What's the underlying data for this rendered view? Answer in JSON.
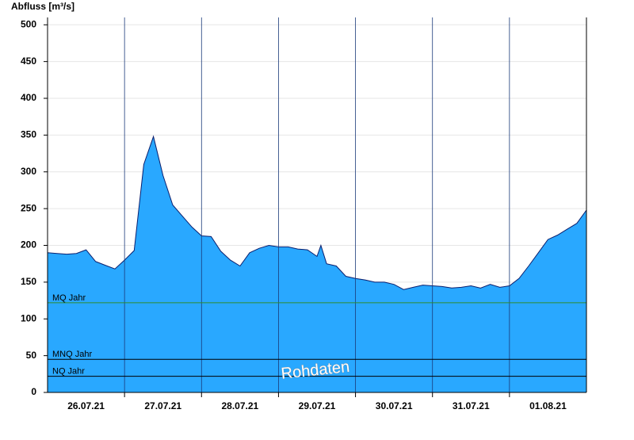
{
  "chart_data": {
    "type": "area",
    "y_label": "Abfluss [m³/s]",
    "x": [
      0,
      0.125,
      0.25,
      0.375,
      0.5,
      0.625,
      0.75,
      0.875,
      1.0,
      1.125,
      1.25,
      1.375,
      1.5,
      1.625,
      1.75,
      1.875,
      2.0,
      2.125,
      2.25,
      2.375,
      2.5,
      2.625,
      2.75,
      2.875,
      3.0,
      3.125,
      3.25,
      3.375,
      3.5,
      3.55,
      3.625,
      3.75,
      3.875,
      4.0,
      4.125,
      4.25,
      4.375,
      4.5,
      4.625,
      4.75,
      4.875,
      5.0,
      5.125,
      5.25,
      5.375,
      5.5,
      5.625,
      5.75,
      5.875,
      6.0,
      6.125,
      6.25,
      6.375,
      6.5,
      6.625,
      6.75,
      6.875,
      7.0
    ],
    "values": [
      190,
      189,
      188,
      189,
      194,
      178,
      173,
      168,
      180,
      193,
      310,
      348,
      295,
      255,
      240,
      225,
      213,
      212,
      192,
      180,
      172,
      190,
      196,
      200,
      198,
      198,
      195,
      194,
      185,
      200,
      175,
      172,
      158,
      155,
      153,
      150,
      150,
      147,
      140,
      143,
      146,
      145,
      144,
      142,
      143,
      145,
      142,
      147,
      143,
      145,
      155,
      172,
      190,
      208,
      214,
      222,
      230,
      248
    ],
    "color": "#29a8ff",
    "line_color": "#0a1f6e",
    "xlim": [
      0,
      7
    ],
    "xticks": [
      {
        "value": 0.5,
        "label": "26.07.21"
      },
      {
        "value": 1.5,
        "label": "27.07.21"
      },
      {
        "value": 2.5,
        "label": "28.07.21"
      },
      {
        "value": 3.5,
        "label": "29.07.21"
      },
      {
        "value": 4.5,
        "label": "30.07.21"
      },
      {
        "value": 5.5,
        "label": "31.07.21"
      },
      {
        "value": 6.5,
        "label": "01.08.21"
      }
    ],
    "day_lines": [
      1,
      2,
      3,
      4,
      5,
      6
    ],
    "ylim": [
      0,
      510
    ],
    "yticks": [
      0,
      50,
      100,
      150,
      200,
      250,
      300,
      350,
      400,
      450,
      500
    ],
    "grid": true,
    "reference_lines": [
      {
        "name": "MQ Jahr",
        "value": 122,
        "color": "#2e8b2e"
      },
      {
        "name": "MNQ Jahr",
        "value": 45,
        "color": "#000000"
      },
      {
        "name": "NQ Jahr",
        "value": 22,
        "color": "#000000"
      }
    ],
    "watermark": "Rohdaten"
  }
}
